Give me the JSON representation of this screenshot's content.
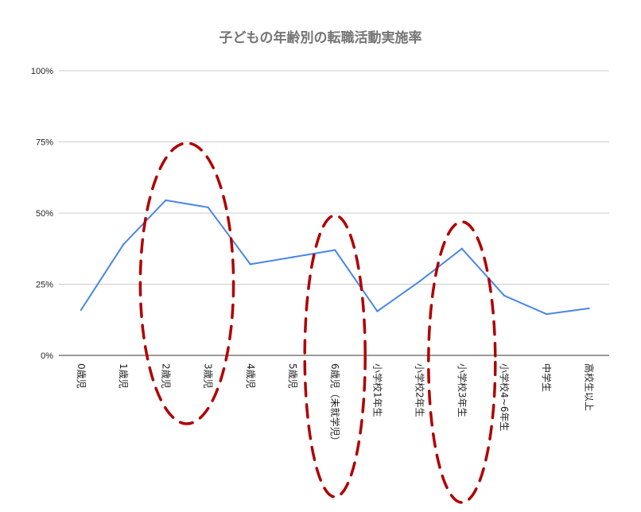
{
  "chart_data": {
    "type": "line",
    "title": "子どもの年齢別の転職活動実施率",
    "categories": [
      "0歳児",
      "1歳児",
      "2歳児",
      "3歳児",
      "4歳児",
      "5歳児",
      "6歳児（未就学児）",
      "小学校1年生",
      "小学校2年生",
      "小学校3年生",
      "小学校4~6年生",
      "中学生",
      "高校生以上"
    ],
    "series": [
      {
        "values": [
          16,
          39,
          54.5,
          52,
          32,
          34.5,
          37,
          15.5,
          26,
          37.5,
          21,
          14.5,
          16.5
        ],
        "color": "#4a86e8"
      }
    ],
    "y_ticks": [
      {
        "value": 0,
        "label": "0%"
      },
      {
        "value": 25,
        "label": "25%"
      },
      {
        "value": 50,
        "label": "50%"
      },
      {
        "value": 75,
        "label": "75%"
      },
      {
        "value": 100,
        "label": "100%"
      }
    ],
    "ylim": [
      0,
      100
    ],
    "grid": true,
    "legend": "none",
    "highlights": [
      {
        "from_category": "2歳児",
        "to_category": "3歳児",
        "color": "#b00000"
      },
      {
        "from_category": "6歳児（未就学児）",
        "to_category": "6歳児（未就学児）",
        "color": "#b00000"
      },
      {
        "from_category": "小学校3年生",
        "to_category": "小学校3年生",
        "color": "#b00000"
      }
    ]
  }
}
